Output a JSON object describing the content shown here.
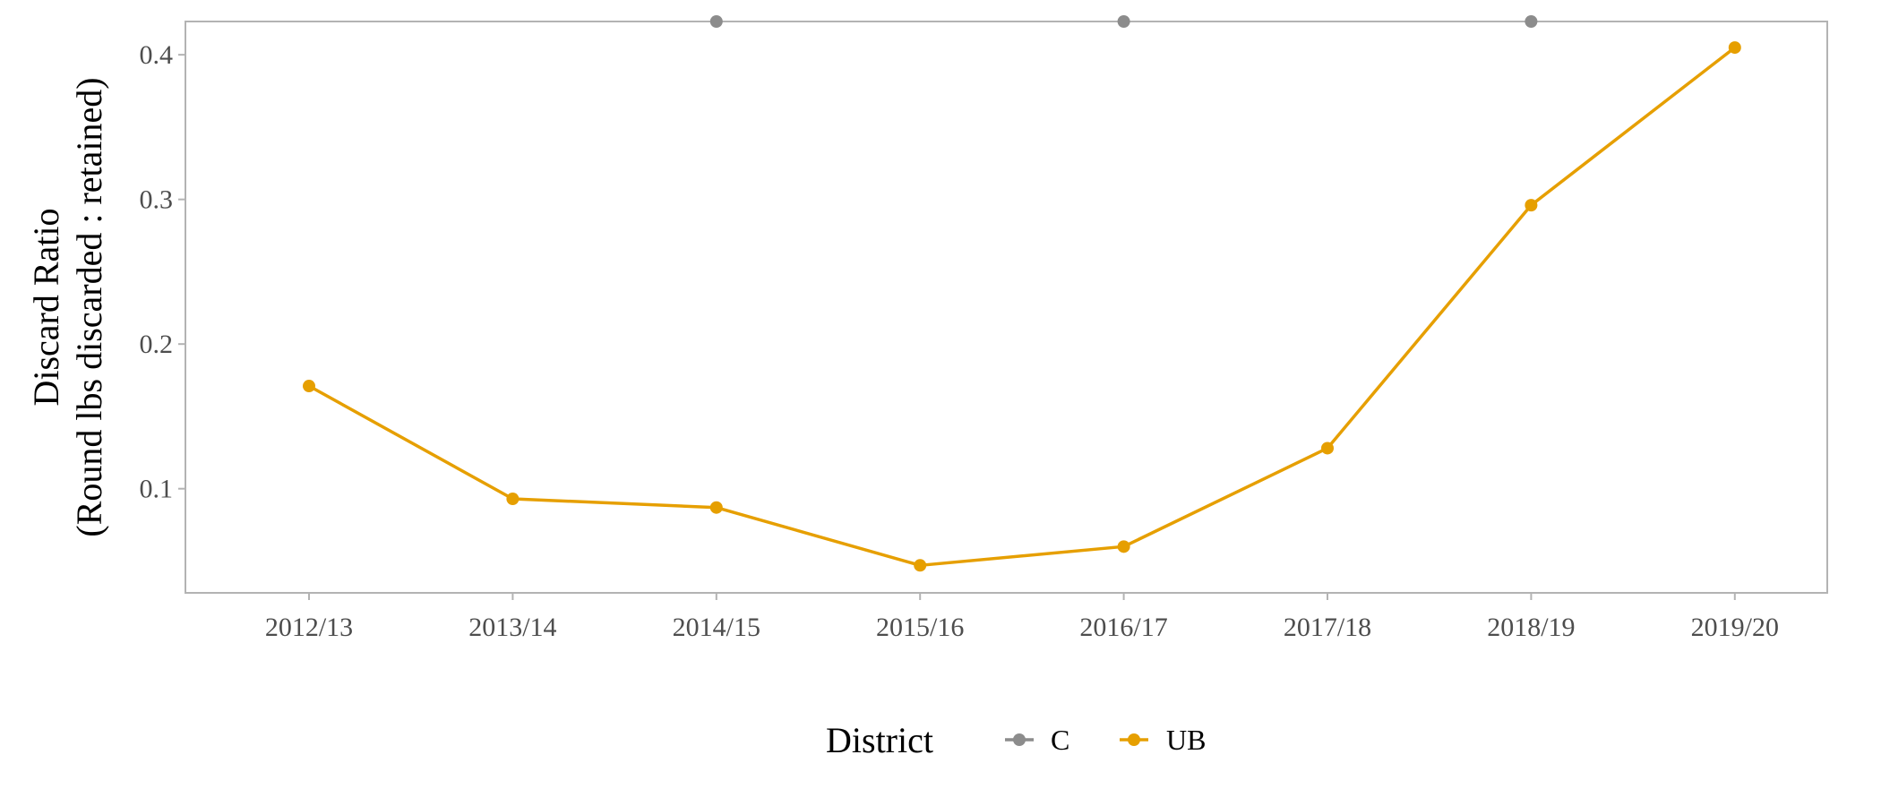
{
  "chart_data": {
    "type": "line",
    "title": "",
    "xlabel": "",
    "ylabel_line1": "Discard Ratio",
    "ylabel_line2": "(Round lbs discarded : retained)",
    "categories": [
      "2012/13",
      "2013/14",
      "2014/15",
      "2015/16",
      "2016/17",
      "2017/18",
      "2018/19",
      "2019/20"
    ],
    "ylim": [
      0.028,
      0.423
    ],
    "yticks": [
      0.1,
      0.2,
      0.3,
      0.4
    ],
    "ytick_labels": [
      "0.1",
      "0.2",
      "0.3",
      "0.4"
    ],
    "grid": false,
    "legend": {
      "title": "District",
      "position": "bottom"
    },
    "series": [
      {
        "name": "C",
        "color": "#8c8c8c",
        "points": [
          {
            "category": "2014/15",
            "value": 0.423
          },
          {
            "category": "2016/17",
            "value": 0.423
          },
          {
            "category": "2018/19",
            "value": 0.423
          }
        ]
      },
      {
        "name": "UB",
        "color": "#e69f00",
        "points": [
          {
            "category": "2012/13",
            "value": 0.171
          },
          {
            "category": "2013/14",
            "value": 0.093
          },
          {
            "category": "2014/15",
            "value": 0.087
          },
          {
            "category": "2015/16",
            "value": 0.047
          },
          {
            "category": "2016/17",
            "value": 0.06
          },
          {
            "category": "2017/18",
            "value": 0.128
          },
          {
            "category": "2018/19",
            "value": 0.296
          },
          {
            "category": "2019/20",
            "value": 0.405
          }
        ]
      }
    ]
  }
}
